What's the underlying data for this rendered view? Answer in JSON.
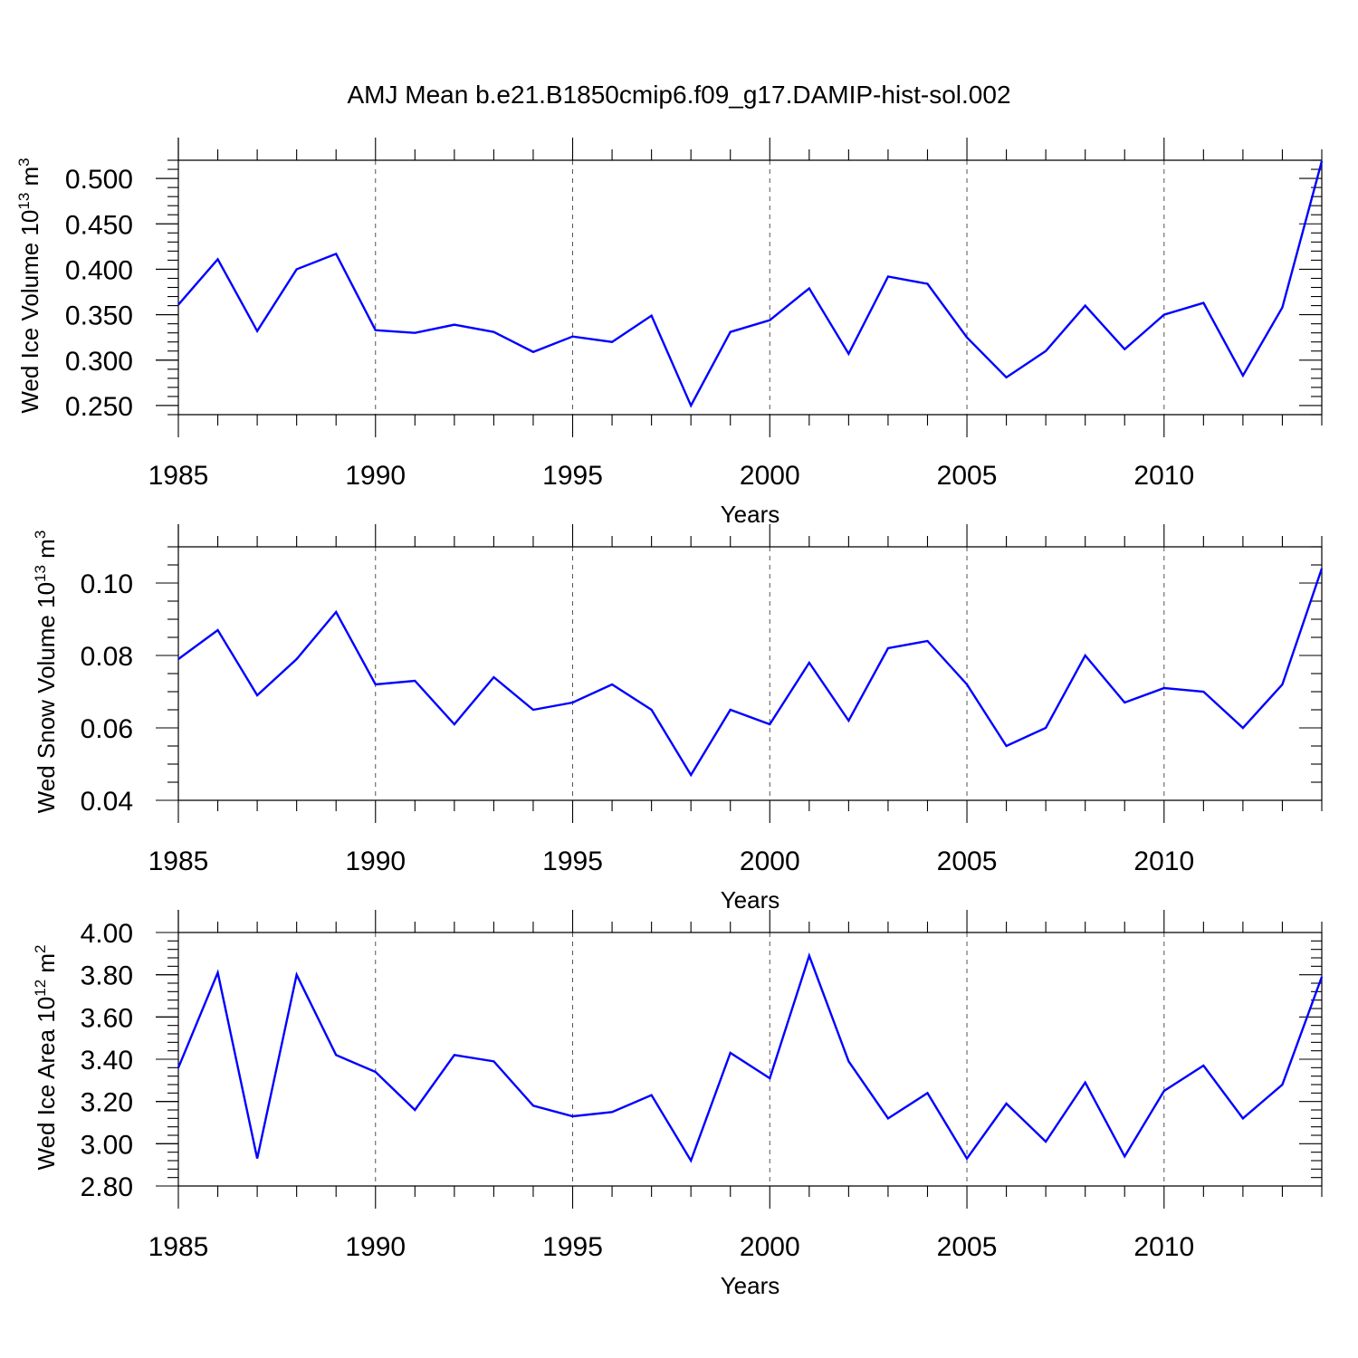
{
  "figure": {
    "title": "AMJ Mean b.e21.B1850cmip6.f09_g17.DAMIP-hist-sol.002",
    "line_color": "#0000ff"
  },
  "chart_data": [
    {
      "type": "line",
      "ylabel_main": "Wed Ice Volume 10",
      "ylabel_exp": "13",
      "ylabel_unit": " m",
      "ylabel_unit_exp": "3",
      "xlabel": "Years",
      "xlim": [
        1985,
        2014
      ],
      "ylim": [
        0.24,
        0.52
      ],
      "grid": "x-dashed",
      "ytick_values": [
        0.25,
        0.3,
        0.35,
        0.4,
        0.45,
        0.5
      ],
      "ytick_labels": [
        "0.250",
        "0.300",
        "0.350",
        "0.400",
        "0.450",
        "0.500"
      ],
      "ytick_minor_step": 0.01,
      "xtick_values": [
        1985,
        1990,
        1995,
        2000,
        2005,
        2010
      ],
      "xtick_labels": [
        "1985",
        "1990",
        "1995",
        "2000",
        "2005",
        "2010"
      ],
      "x": [
        1985,
        1986,
        1987,
        1988,
        1989,
        1990,
        1991,
        1992,
        1993,
        1994,
        1995,
        1996,
        1997,
        1998,
        1999,
        2000,
        2001,
        2002,
        2003,
        2004,
        2005,
        2006,
        2007,
        2008,
        2009,
        2010,
        2011,
        2012,
        2013,
        2014
      ],
      "series": [
        {
          "name": "Wed Ice Volume",
          "values": [
            0.361,
            0.411,
            0.332,
            0.4,
            0.417,
            0.333,
            0.33,
            0.339,
            0.331,
            0.309,
            0.326,
            0.32,
            0.349,
            0.25,
            0.331,
            0.344,
            0.379,
            0.307,
            0.392,
            0.384,
            0.325,
            0.281,
            0.31,
            0.36,
            0.312,
            0.35,
            0.363,
            0.283,
            0.358,
            0.519
          ]
        }
      ]
    },
    {
      "type": "line",
      "ylabel_main": "Wed Snow Volume 10",
      "ylabel_exp": "13",
      "ylabel_unit": " m",
      "ylabel_unit_exp": "3",
      "xlabel": "Years",
      "xlim": [
        1985,
        2014
      ],
      "ylim": [
        0.04,
        0.11
      ],
      "grid": "x-dashed",
      "ytick_values": [
        0.04,
        0.06,
        0.08,
        0.1
      ],
      "ytick_labels": [
        "0.04",
        "0.06",
        "0.08",
        "0.10"
      ],
      "ytick_minor_step": 0.005,
      "xtick_values": [
        1985,
        1990,
        1995,
        2000,
        2005,
        2010
      ],
      "xtick_labels": [
        "1985",
        "1990",
        "1995",
        "2000",
        "2005",
        "2010"
      ],
      "x": [
        1985,
        1986,
        1987,
        1988,
        1989,
        1990,
        1991,
        1992,
        1993,
        1994,
        1995,
        1996,
        1997,
        1998,
        1999,
        2000,
        2001,
        2002,
        2003,
        2004,
        2005,
        2006,
        2007,
        2008,
        2009,
        2010,
        2011,
        2012,
        2013,
        2014
      ],
      "series": [
        {
          "name": "Wed Snow Volume",
          "values": [
            0.079,
            0.087,
            0.069,
            0.079,
            0.092,
            0.072,
            0.073,
            0.061,
            0.074,
            0.065,
            0.067,
            0.072,
            0.065,
            0.047,
            0.065,
            0.061,
            0.078,
            0.062,
            0.082,
            0.084,
            0.072,
            0.055,
            0.06,
            0.08,
            0.067,
            0.071,
            0.07,
            0.06,
            0.072,
            0.104
          ]
        }
      ]
    },
    {
      "type": "line",
      "ylabel_main": "Wed Ice Area 10",
      "ylabel_exp": "12",
      "ylabel_unit": " m",
      "ylabel_unit_exp": "2",
      "xlabel": "Years",
      "xlim": [
        1985,
        2014
      ],
      "ylim": [
        2.8,
        4.0
      ],
      "grid": "x-dashed",
      "ytick_values": [
        2.8,
        3.0,
        3.2,
        3.4,
        3.6,
        3.8,
        4.0
      ],
      "ytick_labels": [
        "2.80",
        "3.00",
        "3.20",
        "3.40",
        "3.60",
        "3.80",
        "4.00"
      ],
      "ytick_minor_step": 0.04,
      "xtick_values": [
        1985,
        1990,
        1995,
        2000,
        2005,
        2010
      ],
      "xtick_labels": [
        "1985",
        "1990",
        "1995",
        "2000",
        "2005",
        "2010"
      ],
      "x": [
        1985,
        1986,
        1987,
        1988,
        1989,
        1990,
        1991,
        1992,
        1993,
        1994,
        1995,
        1996,
        1997,
        1998,
        1999,
        2000,
        2001,
        2002,
        2003,
        2004,
        2005,
        2006,
        2007,
        2008,
        2009,
        2010,
        2011,
        2012,
        2013,
        2014
      ],
      "series": [
        {
          "name": "Wed Ice Area",
          "values": [
            3.36,
            3.81,
            2.93,
            3.8,
            3.42,
            3.34,
            3.16,
            3.42,
            3.39,
            3.18,
            3.13,
            3.15,
            3.23,
            2.92,
            3.43,
            3.31,
            3.89,
            3.39,
            3.12,
            3.24,
            2.93,
            3.19,
            3.01,
            3.29,
            2.94,
            3.25,
            3.37,
            3.12,
            3.28,
            3.79
          ]
        }
      ]
    }
  ]
}
